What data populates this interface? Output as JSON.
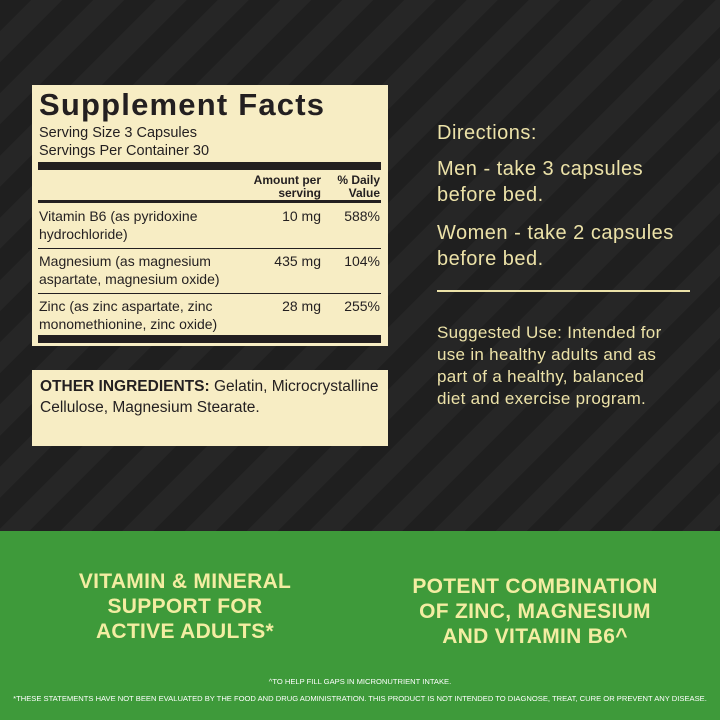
{
  "supplement_facts": {
    "title": "Supplement Facts",
    "serving_size": "Serving Size 3 Capsules",
    "servings_per_container": "Servings Per Container 30",
    "columns": [
      "Amount per serving",
      "% Daily Value"
    ],
    "rows": [
      {
        "name": [
          "Vitamin B6 (as pyridoxine",
          "hydrochloride)"
        ],
        "amount": "10 mg",
        "daily_value": "588%"
      },
      {
        "name": [
          "Magnesium (as magnesium",
          "aspartate, magnesium oxide)"
        ],
        "amount": "435 mg",
        "daily_value": "104%"
      },
      {
        "name": [
          "Zinc (as zinc aspartate, zinc",
          "monomethionine, zinc oxide)"
        ],
        "amount": "28 mg",
        "daily_value": "255%"
      }
    ]
  },
  "other_ingredients": {
    "label": "OTHER INGREDIENTS:",
    "text": "Gelatin, Microcrystalline Cellulose, Magnesium Stearate."
  },
  "directions": {
    "title": "Directions:",
    "men": [
      "Men - take 3 capsules",
      "before bed."
    ],
    "women": [
      "Women - take 2 capsules",
      "before bed."
    ]
  },
  "suggested_use": [
    "Suggested Use: Intended for",
    "use in healthy adults and as",
    "part of a healthy, balanced",
    "diet and exercise program."
  ],
  "claims": [
    [
      "VITAMIN & MINERAL",
      "SUPPORT FOR",
      "ACTIVE ADULTS*"
    ],
    [
      "POTENT COMBINATION",
      "OF ZINC, MAGNESIUM",
      "AND VITAMIN B6^"
    ]
  ],
  "footnotes": [
    "^TO HELP FILL GAPS IN MICRONUTRIENT INTAKE.",
    "*THESE STATEMENTS HAVE NOT BEEN EVALUATED BY THE FOOD AND DRUG ADMINISTRATION. THIS PRODUCT IS NOT INTENDED TO DIAGNOSE, TREAT, CURE OR PREVENT ANY DISEASE."
  ]
}
